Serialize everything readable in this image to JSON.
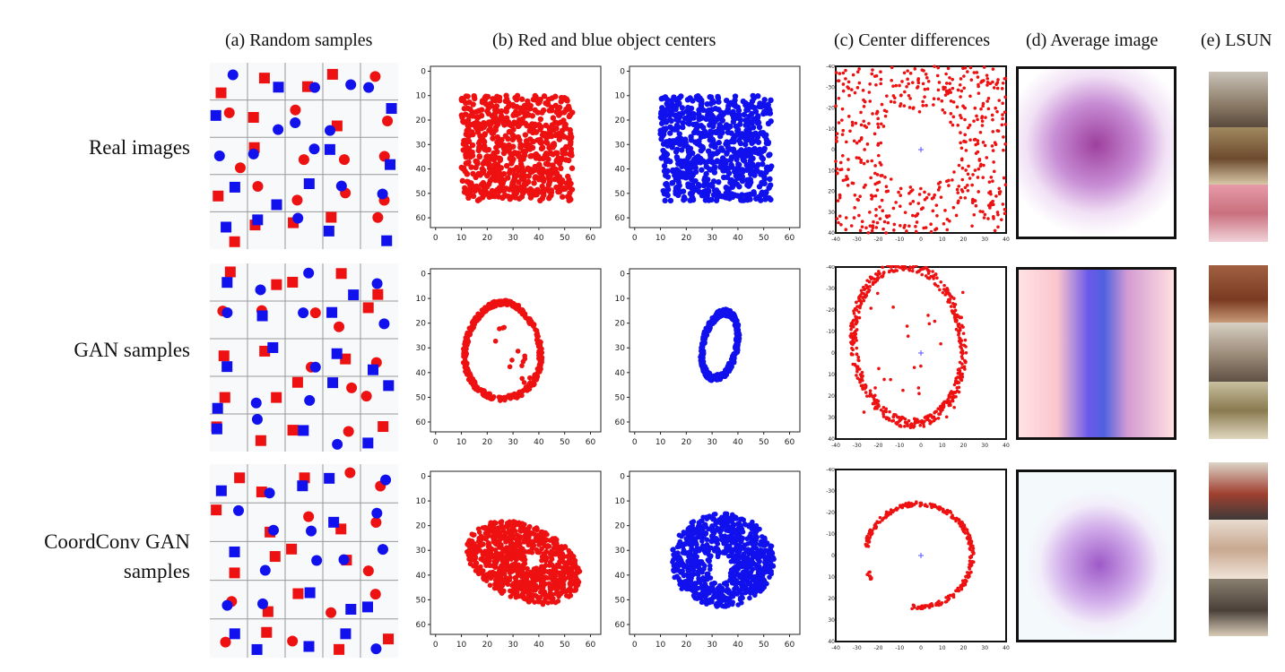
{
  "column_headers": {
    "a": "(a) Random samples",
    "b": "(b) Red and blue object centers",
    "c": "(c) Center differences",
    "d": "(d) Average image",
    "e": "(e) LSUN"
  },
  "row_labels": {
    "real": "Real images",
    "gan": "GAN samples",
    "coordconv_line1": "CoordConv GAN",
    "coordconv_line2": "samples"
  },
  "colors": {
    "red": "#ee1111",
    "blue": "#1111ee",
    "purple": "#8a2a8a"
  },
  "center_plot_ticks": {
    "x": [
      "0",
      "10",
      "20",
      "30",
      "40",
      "50",
      "60"
    ],
    "y": [
      "0",
      "10",
      "20",
      "30",
      "40",
      "50",
      "60"
    ]
  },
  "diff_plot_ticks": {
    "x": [
      "-40",
      "-30",
      "-20",
      "-10",
      "0",
      "10",
      "20",
      "30",
      "40"
    ],
    "y": [
      "-40",
      "-30",
      "-20",
      "-10",
      "0",
      "10",
      "20",
      "30",
      "40"
    ]
  }
}
